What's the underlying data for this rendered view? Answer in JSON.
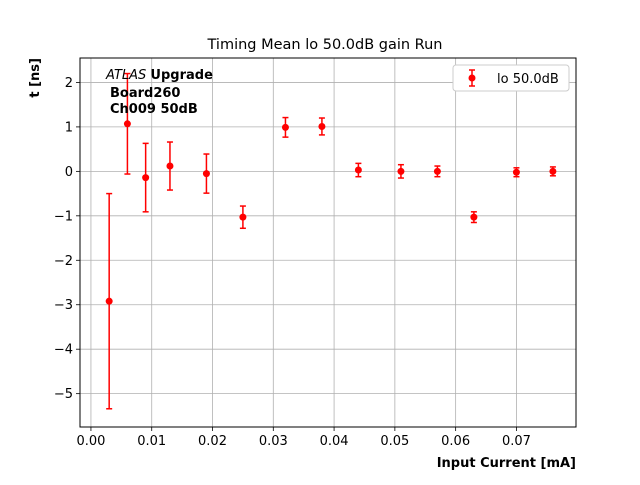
{
  "chart_data": {
    "type": "scatter",
    "title": "Timing Mean lo 50.0dB gain Run",
    "xlabel": "Input Current [mA]",
    "ylabel": "t [ns]",
    "xlim": [
      -0.0018,
      0.0798
    ],
    "ylim": [
      -5.75,
      2.55
    ],
    "x_ticks": [
      0.0,
      0.01,
      0.02,
      0.03,
      0.04,
      0.05,
      0.06,
      0.07
    ],
    "x_tick_labels": [
      "0.00",
      "0.01",
      "0.02",
      "0.03",
      "0.04",
      "0.05",
      "0.06",
      "0.07"
    ],
    "y_ticks": [
      -5,
      -4,
      -3,
      -2,
      -1,
      0,
      1,
      2
    ],
    "y_tick_labels": [
      "−5",
      "−4",
      "−3",
      "−2",
      "−1",
      "0",
      "1",
      "2"
    ],
    "grid": true,
    "legend_position": "top-right",
    "annotation": {
      "atlas": "ATLAS",
      "upgrade": "Upgrade",
      "board": "Board260",
      "channel": "Ch009 50dB"
    },
    "series": [
      {
        "name": "lo 50.0dB",
        "color": "#ff0000",
        "marker": "circle",
        "x": [
          0.003,
          0.006,
          0.009,
          0.013,
          0.019,
          0.025,
          0.032,
          0.038,
          0.044,
          0.051,
          0.057,
          0.063,
          0.07,
          0.076
        ],
        "y": [
          -2.92,
          1.07,
          -0.14,
          0.12,
          -0.05,
          -1.03,
          0.99,
          1.01,
          0.03,
          0.0,
          0.0,
          -1.03,
          -0.02,
          0.0
        ],
        "yerr": [
          2.42,
          1.13,
          0.77,
          0.54,
          0.44,
          0.25,
          0.22,
          0.19,
          0.15,
          0.15,
          0.12,
          0.12,
          0.1,
          0.1
        ]
      }
    ]
  }
}
